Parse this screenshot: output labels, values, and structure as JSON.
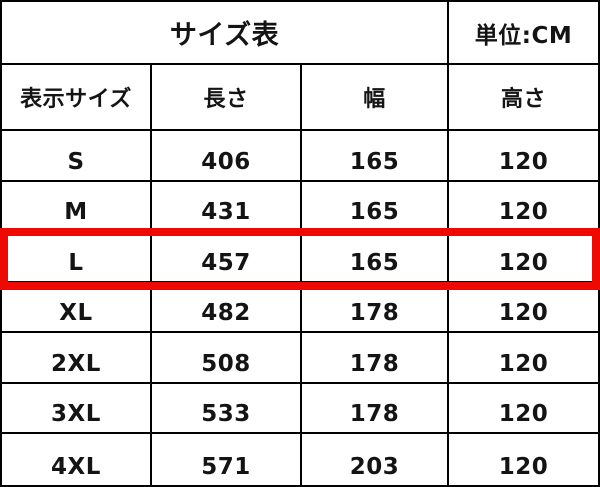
{
  "colors": {
    "highlight_border": "#ee0a02",
    "grid_line": "#000000",
    "text": "#141414",
    "background": "#ffffff"
  },
  "size_table": {
    "title": "サイズ表",
    "unit_label": "単位:CM",
    "columns": [
      "表示サイズ",
      "長さ",
      "幅",
      "高さ"
    ],
    "rows": [
      {
        "size": "S",
        "length": "406",
        "width": "165",
        "height": "120",
        "highlighted": false
      },
      {
        "size": "M",
        "length": "431",
        "width": "165",
        "height": "120",
        "highlighted": false
      },
      {
        "size": "L",
        "length": "457",
        "width": "165",
        "height": "120",
        "highlighted": true
      },
      {
        "size": "XL",
        "length": "482",
        "width": "178",
        "height": "120",
        "highlighted": false
      },
      {
        "size": "2XL",
        "length": "508",
        "width": "178",
        "height": "120",
        "highlighted": false
      },
      {
        "size": "3XL",
        "length": "533",
        "width": "178",
        "height": "120",
        "highlighted": false
      },
      {
        "size": "4XL",
        "length": "571",
        "width": "203",
        "height": "120",
        "highlighted": false
      }
    ]
  },
  "chart_data": {
    "type": "table",
    "title": "サイズ表",
    "unit": "CM",
    "columns": [
      "表示サイズ",
      "長さ",
      "幅",
      "高さ"
    ],
    "rows": [
      [
        "S",
        406,
        165,
        120
      ],
      [
        "M",
        431,
        165,
        120
      ],
      [
        "L",
        457,
        165,
        120
      ],
      [
        "XL",
        482,
        178,
        120
      ],
      [
        "2XL",
        508,
        178,
        120
      ],
      [
        "3XL",
        533,
        178,
        120
      ],
      [
        "4XL",
        571,
        203,
        120
      ]
    ],
    "highlighted_row": "L",
    "layout": {
      "title_spans_columns": 3,
      "grid": true,
      "highlight_style": "thick red outline around row L"
    }
  }
}
